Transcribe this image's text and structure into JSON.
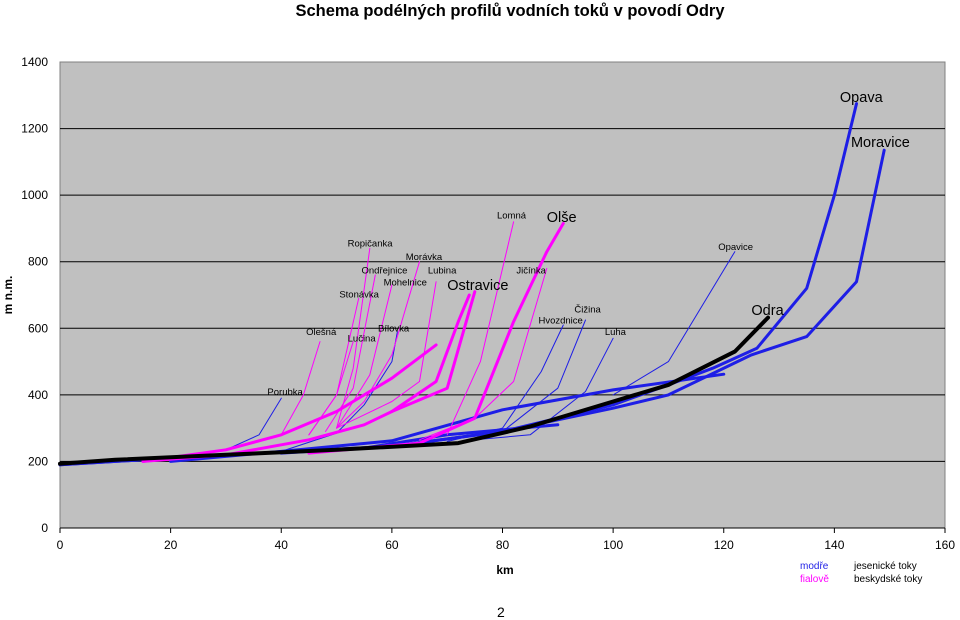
{
  "page": {
    "number": "2"
  },
  "legend": {
    "rows": [
      {
        "color_word": "modře",
        "group": "jesenické  toky",
        "color": "#1e1ee6"
      },
      {
        "color_word": "fialově",
        "group": "beskydské toky",
        "color": "#ff00ff"
      }
    ]
  },
  "chart_data": {
    "type": "line",
    "title": "Schema podélných profilů vodních toků v povodí Odry",
    "xlabel": "km",
    "ylabel": "m n.m.",
    "xlim": [
      0,
      160
    ],
    "ylim": [
      0,
      1400
    ],
    "xticks": [
      0,
      20,
      40,
      60,
      80,
      100,
      120,
      140,
      160
    ],
    "yticks": [
      0,
      200,
      400,
      600,
      800,
      1000,
      1200,
      1400
    ],
    "grid": "horizontal",
    "background": "#c0c0c0",
    "colors": {
      "jesenik": "#1e1ee6",
      "beskydy": "#ff00ff",
      "odra": "#000000"
    },
    "series": [
      {
        "name": "Odra",
        "group": "odra",
        "weight": "main",
        "x": [
          0,
          10,
          30,
          50,
          72,
          85,
          100,
          110,
          122,
          128
        ],
        "y": [
          193,
          205,
          220,
          235,
          255,
          305,
          380,
          430,
          530,
          632
        ]
      },
      {
        "name": "Opava",
        "group": "jesenik",
        "weight": "main",
        "x": [
          0,
          20,
          40,
          60,
          80,
          100,
          110,
          118,
          126,
          135,
          140,
          144
        ],
        "y": [
          190,
          210,
          228,
          245,
          290,
          370,
          430,
          480,
          540,
          720,
          1000,
          1275
        ]
      },
      {
        "name": "Moravice",
        "group": "jesenik",
        "weight": "main",
        "x": [
          0,
          20,
          40,
          60,
          80,
          100,
          110,
          125,
          135,
          144,
          149
        ],
        "y": [
          190,
          210,
          228,
          245,
          290,
          360,
          400,
          520,
          575,
          740,
          1135
        ]
      },
      {
        "name": "Opavice",
        "group": "jesenik",
        "weight": "thin",
        "x": [
          100,
          110,
          122
        ],
        "y": [
          400,
          500,
          830
        ]
      },
      {
        "name": "",
        "group": "jesenik",
        "weight": "main",
        "x": [
          20,
          40,
          60,
          80,
          100,
          120
        ],
        "y": [
          200,
          230,
          262,
          355,
          415,
          462
        ]
      },
      {
        "name": "Čižina",
        "group": "jesenik",
        "weight": "thin",
        "x": [
          65,
          80,
          90,
          95
        ],
        "y": [
          258,
          290,
          420,
          625
        ]
      },
      {
        "name": "Hvozdnice",
        "group": "jesenik",
        "weight": "thin",
        "x": [
          70,
          80,
          87,
          91
        ],
        "y": [
          260,
          300,
          470,
          610
        ]
      },
      {
        "name": "Luha",
        "group": "jesenik",
        "weight": "thin",
        "x": [
          75,
          85,
          95,
          100
        ],
        "y": [
          265,
          280,
          410,
          570
        ]
      },
      {
        "name": "Bílovka",
        "group": "jesenik",
        "weight": "thin",
        "x": [
          40,
          50,
          55,
          60,
          61
        ],
        "y": [
          230,
          285,
          370,
          500,
          590
        ]
      },
      {
        "name": "Porubka",
        "group": "jesenik",
        "weight": "thin",
        "x": [
          30,
          36,
          40
        ],
        "y": [
          235,
          280,
          390
        ]
      },
      {
        "name": "",
        "group": "jesenik",
        "weight": "main",
        "x": [
          40,
          55,
          70,
          90
        ],
        "y": [
          225,
          240,
          280,
          310
        ]
      },
      {
        "name": "Olše",
        "group": "beskydy",
        "weight": "main",
        "x": [
          45,
          65,
          75,
          82,
          88,
          91
        ],
        "y": [
          225,
          255,
          330,
          620,
          830,
          915
        ]
      },
      {
        "name": "Ostravice",
        "group": "beskydy",
        "weight": "main",
        "x": [
          15,
          30,
          45,
          55,
          60,
          70,
          75
        ],
        "y": [
          200,
          220,
          265,
          310,
          350,
          420,
          710
        ]
      },
      {
        "name": "Ostravice",
        "group": "beskydy",
        "weight": "main",
        "x": [
          60,
          68,
          72,
          74
        ],
        "y": [
          350,
          440,
          620,
          700
        ]
      },
      {
        "name": "",
        "group": "beskydy",
        "weight": "main",
        "x": [
          15,
          30,
          40,
          50,
          60,
          68
        ],
        "y": [
          200,
          235,
          280,
          350,
          450,
          550
        ]
      },
      {
        "name": "Lomná",
        "group": "beskydy",
        "weight": "thin",
        "x": [
          70,
          76,
          82
        ],
        "y": [
          280,
          500,
          920
        ]
      },
      {
        "name": "Jičínka",
        "group": "beskydy",
        "weight": "thin",
        "x": [
          65,
          75,
          82,
          88
        ],
        "y": [
          265,
          330,
          440,
          780
        ]
      },
      {
        "name": "Lubina",
        "group": "beskydy",
        "weight": "thin",
        "x": [
          50,
          60,
          65,
          68
        ],
        "y": [
          300,
          380,
          440,
          740
        ]
      },
      {
        "name": "Morávka",
        "group": "beskydy",
        "weight": "thin",
        "x": [
          50,
          55,
          60,
          65
        ],
        "y": [
          300,
          380,
          520,
          800
        ]
      },
      {
        "name": "Mohelnice",
        "group": "beskydy",
        "weight": "thin",
        "x": [
          50,
          56,
          60
        ],
        "y": [
          300,
          460,
          730
        ]
      },
      {
        "name": "Ondřejnice",
        "group": "beskydy",
        "weight": "thin",
        "x": [
          48,
          53,
          57
        ],
        "y": [
          290,
          420,
          760
        ]
      },
      {
        "name": "Ropičanka",
        "group": "beskydy",
        "weight": "thin",
        "x": [
          50,
          53,
          56
        ],
        "y": [
          300,
          480,
          840
        ]
      },
      {
        "name": "Stonávka",
        "group": "beskydy",
        "weight": "thin",
        "x": [
          45,
          50,
          54
        ],
        "y": [
          280,
          400,
          690
        ]
      },
      {
        "name": "Lučina",
        "group": "beskydy",
        "weight": "thin",
        "x": [
          45,
          50,
          53
        ],
        "y": [
          280,
          400,
          560
        ]
      },
      {
        "name": "Olešná",
        "group": "beskydy",
        "weight": "thin",
        "x": [
          40,
          44,
          47
        ],
        "y": [
          280,
          400,
          560
        ]
      }
    ],
    "labels": [
      {
        "text": "Opava",
        "x": 141,
        "y": 1280,
        "size": "large"
      },
      {
        "text": "Moravice",
        "x": 143,
        "y": 1145,
        "size": "large"
      },
      {
        "text": "Olše",
        "x": 88,
        "y": 920,
        "size": "large"
      },
      {
        "text": "Ostravice",
        "x": 70,
        "y": 715,
        "size": "large"
      },
      {
        "text": "Odra",
        "x": 125,
        "y": 640,
        "size": "large"
      },
      {
        "text": "Opavice",
        "x": 119,
        "y": 835,
        "size": "small"
      },
      {
        "text": "Lomná",
        "x": 79,
        "y": 930,
        "size": "small"
      },
      {
        "text": "Ropičanka",
        "x": 52,
        "y": 845,
        "size": "small"
      },
      {
        "text": "Morávka",
        "x": 62.5,
        "y": 805,
        "size": "small"
      },
      {
        "text": "Ondřejnice",
        "x": 54.5,
        "y": 765,
        "size": "small"
      },
      {
        "text": "Lubina",
        "x": 66.5,
        "y": 765,
        "size": "small"
      },
      {
        "text": "Jičínka",
        "x": 82.5,
        "y": 765,
        "size": "small"
      },
      {
        "text": "Mohelnice",
        "x": 58.5,
        "y": 728,
        "size": "small"
      },
      {
        "text": "Stonávka",
        "x": 50.5,
        "y": 692,
        "size": "small"
      },
      {
        "text": "Čižina",
        "x": 93,
        "y": 648,
        "size": "small"
      },
      {
        "text": "Hvozdnice",
        "x": 86.5,
        "y": 615,
        "size": "small"
      },
      {
        "text": "Bílovka",
        "x": 57.5,
        "y": 590,
        "size": "small"
      },
      {
        "text": "Olešná",
        "x": 44.5,
        "y": 580,
        "size": "small"
      },
      {
        "text": "Lučina",
        "x": 52,
        "y": 560,
        "size": "small"
      },
      {
        "text": "Luha",
        "x": 98.5,
        "y": 580,
        "size": "small"
      },
      {
        "text": "Porubka",
        "x": 37.5,
        "y": 400,
        "size": "small"
      }
    ]
  }
}
